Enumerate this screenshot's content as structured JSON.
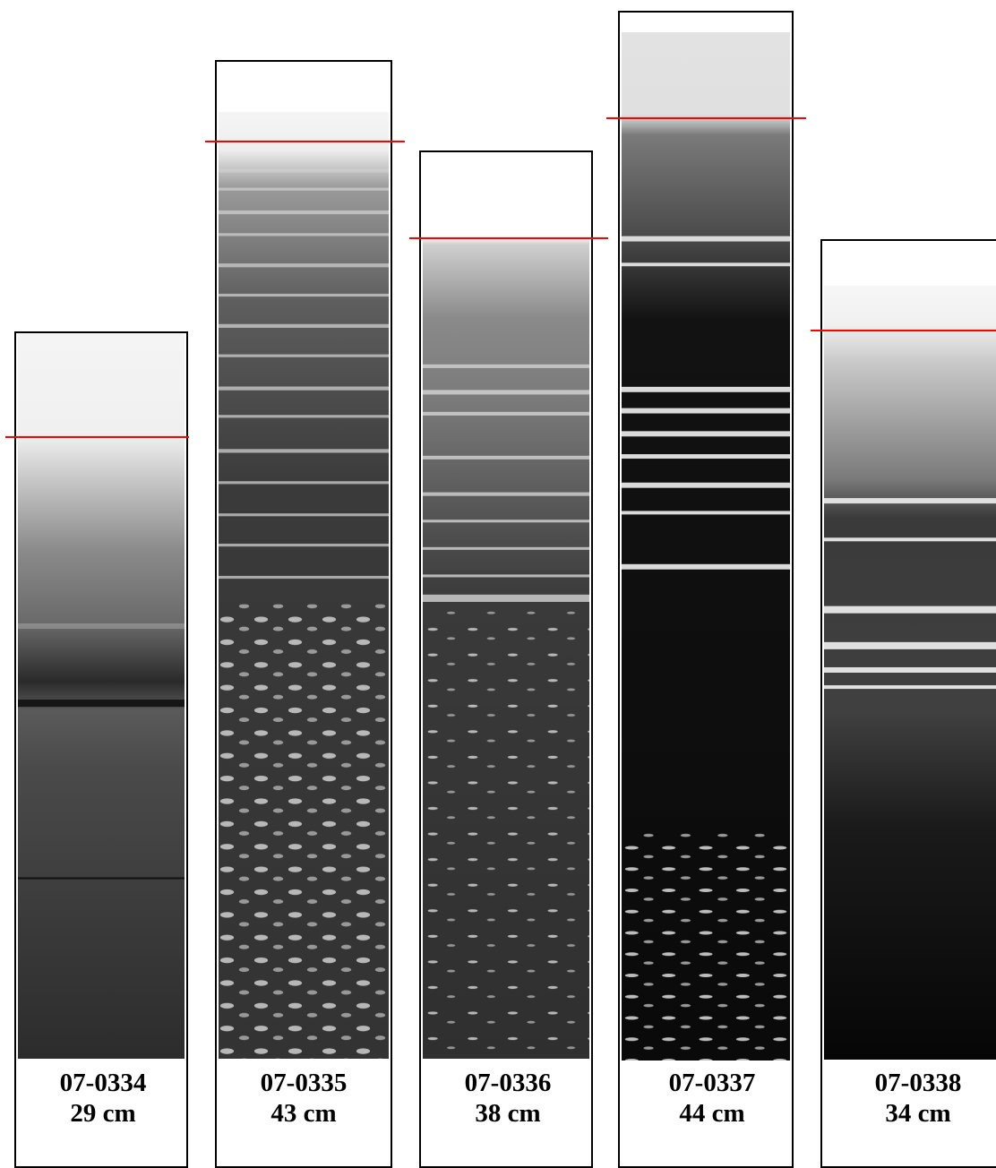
{
  "cores": [
    {
      "id": "07-0334",
      "depth": "29 cm"
    },
    {
      "id": "07-0335",
      "depth": "43 cm"
    },
    {
      "id": "07-0336",
      "depth": "38 cm"
    },
    {
      "id": "07-0337",
      "depth": "44 cm"
    },
    {
      "id": "07-0338",
      "depth": "34 cm"
    }
  ],
  "colors": {
    "surface_line": "#ff0000",
    "frame": "#000000"
  }
}
